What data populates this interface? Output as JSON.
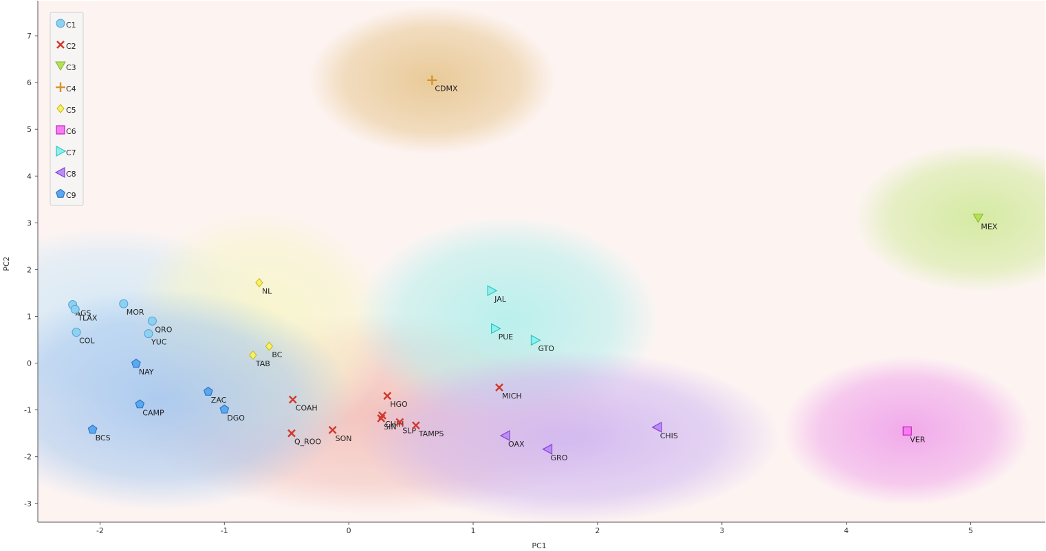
{
  "chart_data": {
    "type": "scatter",
    "xlabel": "PC1",
    "ylabel": "PC2",
    "xlim": [
      -2.5,
      5.6
    ],
    "ylim": [
      -3.4,
      7.75
    ],
    "xticks": [
      -2,
      -1,
      0,
      1,
      2,
      3,
      4,
      5
    ],
    "yticks": [
      -3,
      -2,
      -1,
      0,
      1,
      2,
      3,
      4,
      5,
      6,
      7
    ],
    "grid": false,
    "legend_position": "top-left",
    "series": [
      {
        "name": "C1",
        "marker": "circle",
        "color": "#8fd0ef",
        "stroke": "#4aa3d6",
        "region": "#d4e8f6",
        "points": [
          {
            "label": "AGS",
            "x": -2.22,
            "y": 1.25
          },
          {
            "label": "TLAX",
            "x": -2.2,
            "y": 1.15
          },
          {
            "label": "MOR",
            "x": -1.81,
            "y": 1.27
          },
          {
            "label": "QRO",
            "x": -1.58,
            "y": 0.9
          },
          {
            "label": "YUC",
            "x": -1.61,
            "y": 0.63
          },
          {
            "label": "COL",
            "x": -2.19,
            "y": 0.66
          }
        ]
      },
      {
        "name": "C2",
        "marker": "x",
        "color": "#d0392b",
        "stroke": "#d0392b",
        "region": "#f3c2bc",
        "points": [
          {
            "label": "MICH",
            "x": 1.21,
            "y": -0.52
          },
          {
            "label": "COAH",
            "x": -0.45,
            "y": -0.78
          },
          {
            "label": "HGO",
            "x": 0.31,
            "y": -0.7
          },
          {
            "label": "CHIH",
            "x": 0.27,
            "y": -1.12
          },
          {
            "label": "SIN",
            "x": 0.26,
            "y": -1.18
          },
          {
            "label": "SLP",
            "x": 0.41,
            "y": -1.26
          },
          {
            "label": "TAMPS",
            "x": 0.54,
            "y": -1.33
          },
          {
            "label": "SON",
            "x": -0.13,
            "y": -1.43
          },
          {
            "label": "Q_ROO",
            "x": -0.46,
            "y": -1.5
          }
        ]
      },
      {
        "name": "C3",
        "marker": "triangle-down",
        "color": "#b6e05a",
        "stroke": "#86b22e",
        "region": "#d3ea9f",
        "points": [
          {
            "label": "MEX",
            "x": 5.06,
            "y": 3.1
          }
        ]
      },
      {
        "name": "C4",
        "marker": "plus",
        "color": "#d4952e",
        "stroke": "#d4952e",
        "region": "#e8c894",
        "points": [
          {
            "label": "CDMX",
            "x": 0.67,
            "y": 6.05
          }
        ]
      },
      {
        "name": "C5",
        "marker": "diamond",
        "color": "#f7f070",
        "stroke": "#c8b800",
        "region": "#f7f5c9",
        "points": [
          {
            "label": "NL",
            "x": -0.72,
            "y": 1.72
          },
          {
            "label": "BC",
            "x": -0.64,
            "y": 0.36
          },
          {
            "label": "TAB",
            "x": -0.77,
            "y": 0.17
          }
        ]
      },
      {
        "name": "C6",
        "marker": "square",
        "color": "#f57ef0",
        "stroke": "#c81fc0",
        "region": "#f0a6ea",
        "points": [
          {
            "label": "VER",
            "x": 4.49,
            "y": -1.45
          }
        ]
      },
      {
        "name": "C7",
        "marker": "triangle-right",
        "color": "#8ff0ee",
        "stroke": "#2cc5c1",
        "region": "#b6efec",
        "points": [
          {
            "label": "JAL",
            "x": 1.15,
            "y": 1.55
          },
          {
            "label": "PUE",
            "x": 1.18,
            "y": 0.74
          },
          {
            "label": "GTO",
            "x": 1.5,
            "y": 0.49
          }
        ]
      },
      {
        "name": "C8",
        "marker": "triangle-left",
        "color": "#b98ff0",
        "stroke": "#8a3fe0",
        "region": "#d1b8f1",
        "points": [
          {
            "label": "CHIS",
            "x": 2.48,
            "y": -1.37
          },
          {
            "label": "OAX",
            "x": 1.26,
            "y": -1.55
          },
          {
            "label": "GRO",
            "x": 1.6,
            "y": -1.84
          }
        ]
      },
      {
        "name": "C9",
        "marker": "pentagon",
        "color": "#5aa8ee",
        "stroke": "#2f73c8",
        "region": "#a9c9ef",
        "points": [
          {
            "label": "NAY",
            "x": -1.71,
            "y": -0.01
          },
          {
            "label": "CAMP",
            "x": -1.68,
            "y": -0.88
          },
          {
            "label": "ZAC",
            "x": -1.13,
            "y": -0.61
          },
          {
            "label": "DGO",
            "x": -1.0,
            "y": -0.99
          },
          {
            "label": "BCS",
            "x": -2.06,
            "y": -1.42
          }
        ]
      }
    ]
  }
}
